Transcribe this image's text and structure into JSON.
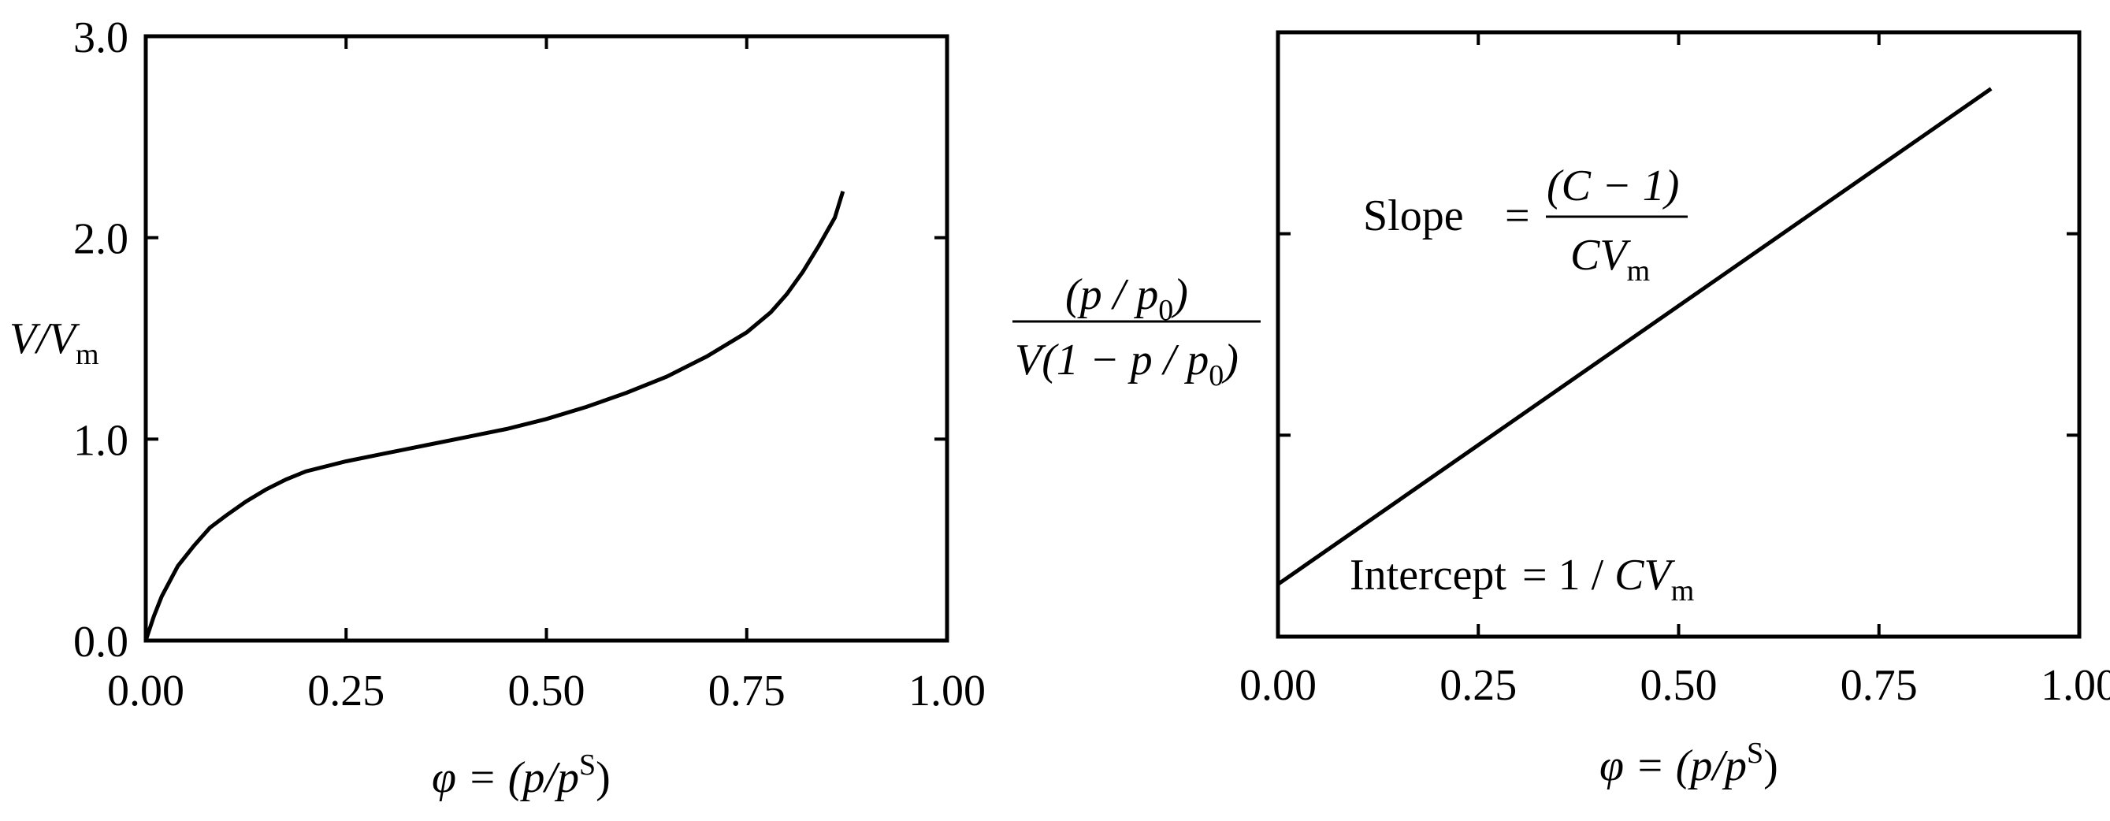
{
  "chart_data": [
    {
      "type": "line",
      "title": "",
      "xlabel": {
        "main": "φ = (p/p",
        "sup": "S",
        "close": ")"
      },
      "ylabel": {
        "main": "V/V",
        "sub": "m"
      },
      "xlim": [
        0,
        1.0
      ],
      "ylim": [
        0,
        3.0
      ],
      "xticks": [
        "0.00",
        "0.25",
        "0.50",
        "0.75",
        "1.00"
      ],
      "xtick_values": [
        0,
        0.25,
        0.5,
        0.75,
        1.0
      ],
      "yticks": [
        "0.0",
        "1.0",
        "2.0",
        "3.0"
      ],
      "ytick_values": [
        0,
        1.0,
        2.0,
        3.0
      ],
      "grid": false,
      "series": [
        {
          "x": [
            0,
            0.01,
            0.02,
            0.04,
            0.06,
            0.08,
            0.1,
            0.125,
            0.15,
            0.175,
            0.2,
            0.25,
            0.3,
            0.35,
            0.4,
            0.45,
            0.5,
            0.55,
            0.6,
            0.65,
            0.7,
            0.75,
            0.78,
            0.8,
            0.82,
            0.84,
            0.86,
            0.87
          ],
          "y": [
            0,
            0.12,
            0.22,
            0.37,
            0.47,
            0.56,
            0.62,
            0.69,
            0.75,
            0.8,
            0.84,
            0.89,
            0.93,
            0.97,
            1.01,
            1.05,
            1.1,
            1.16,
            1.23,
            1.31,
            1.41,
            1.53,
            1.63,
            1.72,
            1.83,
            1.96,
            2.1,
            2.23
          ]
        }
      ]
    },
    {
      "type": "line",
      "title": "",
      "xlabel": {
        "main": "φ = (p/p",
        "sup": "S",
        "close": ")"
      },
      "ylabel": {
        "numerator": "(p / p0)",
        "num_parts": [
          "(p / p",
          "0",
          ")"
        ],
        "denom_parts": [
          "V(1 − p / p",
          "0",
          ")"
        ]
      },
      "xlim": [
        0,
        1.0
      ],
      "ylim": [
        0,
        3.0
      ],
      "xticks": [
        "0.00",
        "0.25",
        "0.50",
        "0.75",
        "1.00"
      ],
      "xtick_values": [
        0,
        0.25,
        0.5,
        0.75,
        1.0
      ],
      "ytick_values": [
        1.0,
        2.0
      ],
      "grid": false,
      "series": [
        {
          "x": [
            0,
            0.89
          ],
          "y": [
            0.26,
            2.72
          ]
        }
      ],
      "annotations": {
        "slope": {
          "label": "Slope",
          "eq": "=",
          "num": "(C − 1)",
          "den_main": "CV",
          "den_sub": "m"
        },
        "intercept": {
          "label": "Intercept",
          "eq": "= 1 / ",
          "main": "CV",
          "sub": "m"
        }
      }
    }
  ]
}
